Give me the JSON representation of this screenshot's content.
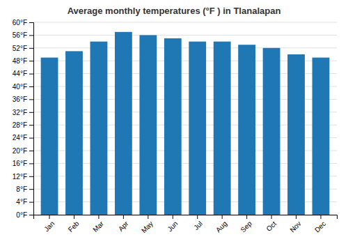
{
  "chart_data": {
    "type": "bar",
    "title": "Average monthly temperatures (°F ) in Tlanalapan",
    "categories": [
      "Jan",
      "Feb",
      "Mar",
      "Apr",
      "May",
      "Jun",
      "Jul",
      "Aug",
      "Sep",
      "Oct",
      "Nov",
      "Dec"
    ],
    "values": [
      49,
      51,
      54,
      57,
      56,
      55,
      54,
      54,
      53,
      52,
      50,
      49
    ],
    "ylim": [
      0,
      60
    ],
    "yticks": [
      {
        "value": 0,
        "label": "0°F"
      },
      {
        "value": 4,
        "label": "4°F"
      },
      {
        "value": 8,
        "label": "8°F"
      },
      {
        "value": 12,
        "label": "12°F"
      },
      {
        "value": 16,
        "label": "16°F"
      },
      {
        "value": 20,
        "label": "20°F"
      },
      {
        "value": 24,
        "label": "24°F"
      },
      {
        "value": 28,
        "label": "28°F"
      },
      {
        "value": 32,
        "label": "32°F"
      },
      {
        "value": 36,
        "label": "36°F"
      },
      {
        "value": 40,
        "label": "40°F"
      },
      {
        "value": 44,
        "label": "44°F"
      },
      {
        "value": 48,
        "label": "48°F"
      },
      {
        "value": 52,
        "label": "52°F"
      },
      {
        "value": 56,
        "label": "56°F"
      },
      {
        "value": 60,
        "label": "60°F"
      }
    ],
    "grid": true
  }
}
